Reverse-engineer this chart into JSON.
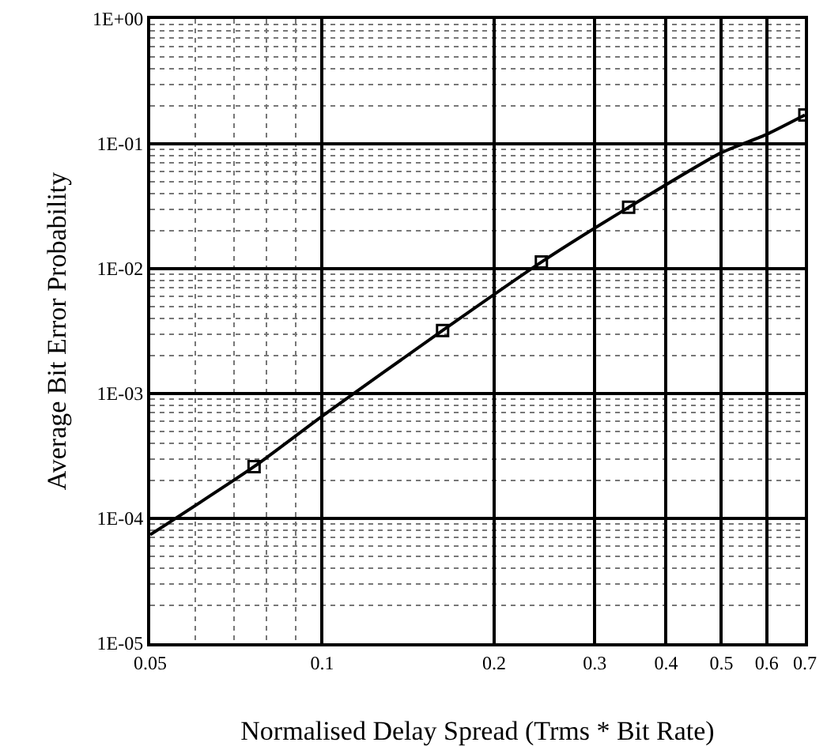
{
  "chart_data": {
    "type": "line",
    "xlabel": "Normalised Delay Spread (Trms * Bit Rate)",
    "ylabel": "Average Bit Error Probability",
    "log": "xy",
    "grid": true,
    "xlim": [
      0.05,
      0.7
    ],
    "xticks": [
      0.05,
      0.1,
      0.2,
      0.3,
      0.4,
      0.5,
      0.6,
      0.7
    ],
    "ylim": [
      1e-05,
      1
    ],
    "yticks": [
      {
        "value": 1e-05,
        "label": "1E-05"
      },
      {
        "value": 0.0001,
        "label": "1E-04"
      },
      {
        "value": 0.001,
        "label": "1E-03"
      },
      {
        "value": 0.01,
        "label": "1E-02"
      },
      {
        "value": 0.1,
        "label": "1E-01"
      },
      {
        "value": 1,
        "label": "1E+00"
      }
    ],
    "series": [
      {
        "color": "#000000",
        "marker": "none",
        "line_style": "solid",
        "x": [
          0.05,
          0.076,
          0.1,
          0.1625,
          0.242,
          0.344,
          0.5,
          0.6,
          0.7
        ],
        "values": [
          7.4e-05,
          0.00026,
          0.00066,
          0.0032,
          0.0113,
          0.031,
          0.085,
          0.119,
          0.17
        ]
      },
      {
        "type": "scatter",
        "color": "#000000",
        "marker": "square",
        "x": [
          0.076,
          0.1625,
          0.242,
          0.344,
          0.7
        ],
        "values": [
          0.00026,
          0.0032,
          0.0113,
          0.031,
          0.17
        ]
      }
    ]
  }
}
